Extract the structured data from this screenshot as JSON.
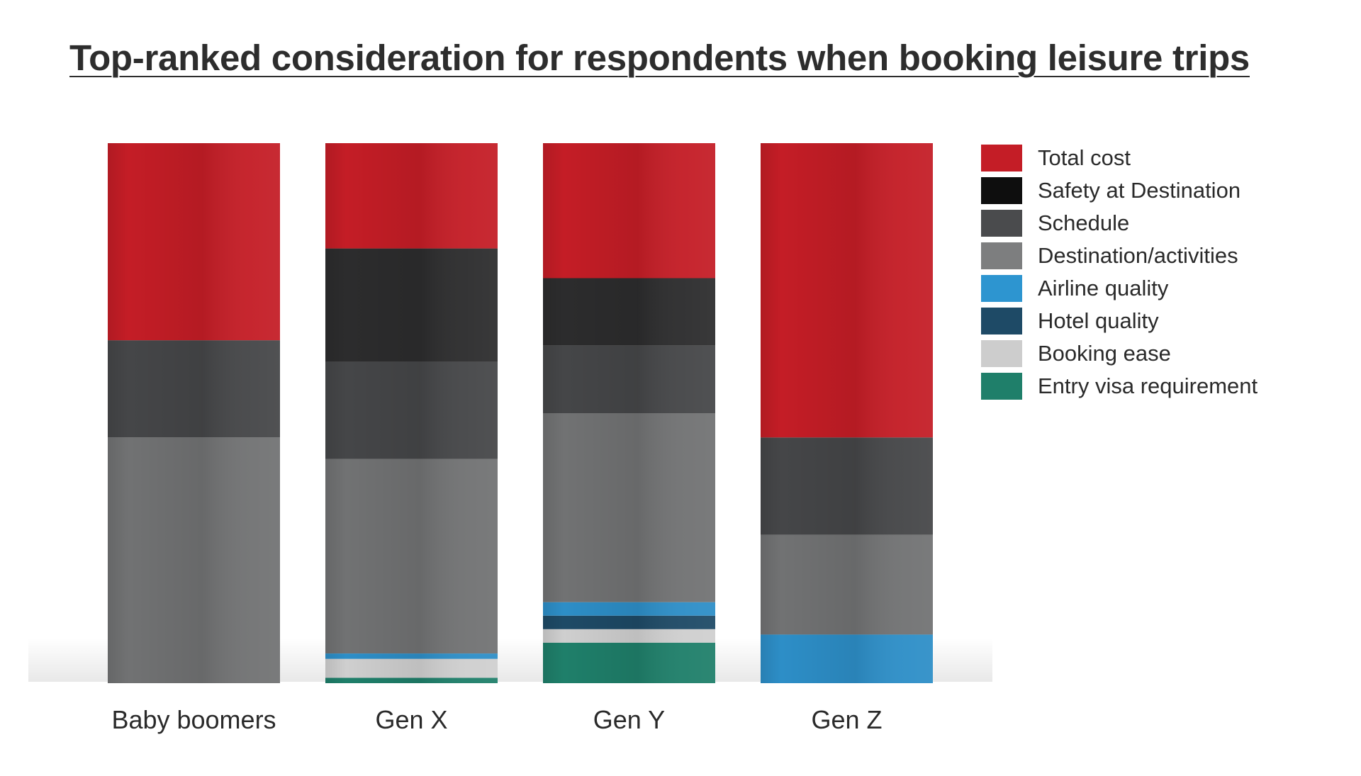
{
  "chart_data": {
    "type": "bar",
    "stacked": true,
    "title": "Top-ranked consideration for respondents when booking leisure trips",
    "xlabel": "",
    "ylabel": "",
    "ylim": [
      0,
      100
    ],
    "grid": false,
    "legend_position": "right",
    "categories": [
      "Baby boomers",
      "Gen X",
      "Gen Y",
      "Gen Z"
    ],
    "series": [
      {
        "name": "Entry visa requirement",
        "color": "#1f7f6a",
        "values": [
          0,
          1,
          7.5,
          0
        ]
      },
      {
        "name": "Booking ease",
        "color": "#cfcfcf",
        "values": [
          0,
          3.5,
          2.5,
          0
        ]
      },
      {
        "name": "Hotel quality",
        "color": "#1e4a66",
        "values": [
          0,
          0,
          2.5,
          0
        ]
      },
      {
        "name": "Airline quality",
        "color": "#2d8ec7",
        "values": [
          0,
          1,
          2.5,
          9
        ]
      },
      {
        "name": "Destination/activities",
        "color": "#717273",
        "values": [
          45.5,
          36,
          35,
          18.5
        ]
      },
      {
        "name": "Schedule",
        "color": "#454648",
        "values": [
          18,
          18,
          12.5,
          18
        ]
      },
      {
        "name": "Safety at Destination",
        "color": "#2c2c2d",
        "values": [
          0,
          21,
          12.5,
          0
        ]
      },
      {
        "name": "Total cost",
        "color": "#c41d26",
        "values": [
          36.5,
          19.5,
          25,
          54.5
        ]
      }
    ]
  },
  "legend": [
    {
      "label": "Total cost",
      "color": "#c41d26"
    },
    {
      "label": "Safety at Destination",
      "color": "#0e0e0e"
    },
    {
      "label": "Schedule",
      "color": "#4a4b4d"
    },
    {
      "label": "Destination/activities",
      "color": "#7d7e7f"
    },
    {
      "label": "Airline quality",
      "color": "#2d95d0"
    },
    {
      "label": "Hotel quality",
      "color": "#1e4a66"
    },
    {
      "label": "Booking ease",
      "color": "#cdcdcd"
    },
    {
      "label": "Entry visa requirement",
      "color": "#1f7f6a"
    }
  ]
}
